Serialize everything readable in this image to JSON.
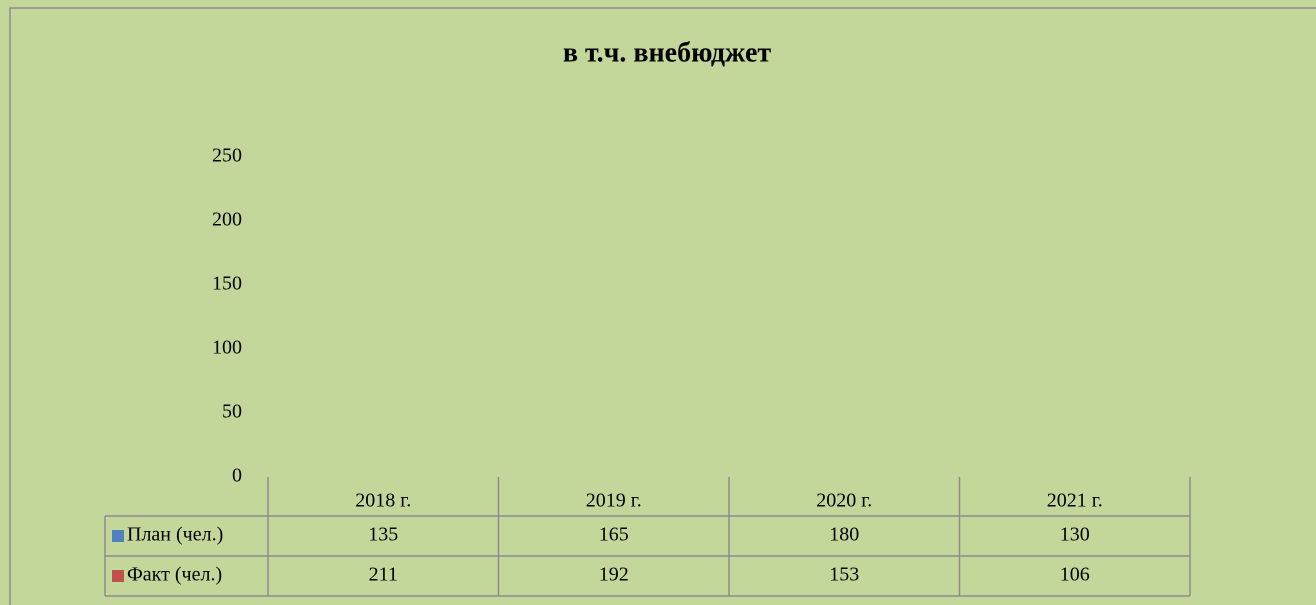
{
  "chart_data": {
    "type": "bar",
    "title": "в т.ч. внебюджет",
    "categories": [
      "2018 г.",
      "2019 г.",
      "2020 г.",
      "2021 г."
    ],
    "series": [
      {
        "name": "План (чел.)",
        "color": "#4f81bd",
        "values": [
          135,
          165,
          180,
          130
        ]
      },
      {
        "name": "Факт (чел.)",
        "color": "#c0504d",
        "values": [
          211,
          192,
          153,
          106
        ]
      }
    ],
    "ylim": [
      0,
      250
    ],
    "yticks": [
      0,
      50,
      100,
      150,
      200,
      250
    ]
  }
}
